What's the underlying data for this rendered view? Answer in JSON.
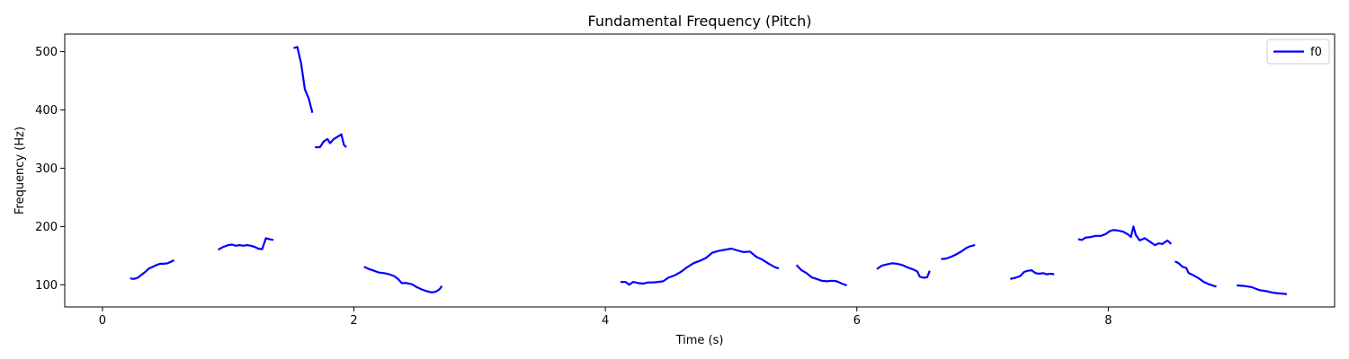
{
  "chart_data": {
    "type": "line",
    "title": "Fundamental Frequency (Pitch)",
    "xlabel": "Time (s)",
    "ylabel": "Frequency (Hz)",
    "xlim": [
      -0.3,
      9.8
    ],
    "ylim": [
      62,
      530
    ],
    "xticks": [
      0,
      2,
      4,
      6,
      8
    ],
    "yticks": [
      100,
      200,
      300,
      400,
      500
    ],
    "grid": false,
    "legend": {
      "position": "top-right",
      "entries": [
        "f0"
      ]
    },
    "series": [
      {
        "name": "f0",
        "color": "#0000ff",
        "segments": [
          [
            [
              0.22,
              111
            ],
            [
              0.25,
              110
            ],
            [
              0.28,
              112
            ],
            [
              0.31,
              117
            ],
            [
              0.34,
              122
            ],
            [
              0.37,
              128
            ],
            [
              0.4,
              131
            ],
            [
              0.43,
              134
            ],
            [
              0.46,
              136
            ],
            [
              0.49,
              136
            ],
            [
              0.52,
              137
            ],
            [
              0.55,
              140
            ],
            [
              0.57,
              142
            ]
          ],
          [
            [
              0.92,
              160
            ],
            [
              0.96,
              165
            ],
            [
              1.0,
              168
            ],
            [
              1.03,
              169
            ],
            [
              1.06,
              167
            ],
            [
              1.09,
              168
            ],
            [
              1.12,
              167
            ],
            [
              1.15,
              168
            ],
            [
              1.18,
              167
            ],
            [
              1.21,
              165
            ],
            [
              1.24,
              162
            ],
            [
              1.27,
              161
            ],
            [
              1.3,
              180
            ],
            [
              1.33,
              178
            ],
            [
              1.36,
              177
            ]
          ],
          [
            [
              1.52,
              506
            ],
            [
              1.55,
              508
            ],
            [
              1.58,
              480
            ],
            [
              1.61,
              435
            ],
            [
              1.64,
              420
            ],
            [
              1.67,
              395
            ]
          ],
          [
            [
              1.69,
              336
            ],
            [
              1.73,
              336
            ],
            [
              1.76,
              346
            ],
            [
              1.79,
              350
            ],
            [
              1.81,
              343
            ],
            [
              1.84,
              350
            ],
            [
              1.87,
              354
            ],
            [
              1.9,
              358
            ],
            [
              1.92,
              340
            ],
            [
              1.94,
              336
            ]
          ],
          [
            [
              2.08,
              131
            ],
            [
              2.12,
              127
            ],
            [
              2.16,
              124
            ],
            [
              2.2,
              121
            ],
            [
              2.24,
              120
            ],
            [
              2.28,
              118
            ],
            [
              2.32,
              115
            ],
            [
              2.35,
              110
            ],
            [
              2.38,
              103
            ],
            [
              2.42,
              103
            ],
            [
              2.46,
              101
            ],
            [
              2.5,
              96
            ],
            [
              2.54,
              92
            ],
            [
              2.58,
              89
            ],
            [
              2.62,
              87
            ],
            [
              2.65,
              88
            ],
            [
              2.68,
              92
            ],
            [
              2.7,
              98
            ]
          ],
          [
            [
              4.12,
              105
            ],
            [
              4.16,
              105
            ],
            [
              4.19,
              100
            ],
            [
              4.22,
              105
            ],
            [
              4.26,
              103
            ],
            [
              4.3,
              102
            ],
            [
              4.34,
              104
            ],
            [
              4.38,
              104
            ],
            [
              4.42,
              105
            ],
            [
              4.46,
              106
            ],
            [
              4.5,
              112
            ],
            [
              4.55,
              116
            ],
            [
              4.6,
              122
            ],
            [
              4.65,
              130
            ],
            [
              4.7,
              137
            ],
            [
              4.75,
              141
            ],
            [
              4.8,
              146
            ],
            [
              4.85,
              155
            ],
            [
              4.9,
              158
            ],
            [
              4.95,
              160
            ],
            [
              5.0,
              162
            ],
            [
              5.05,
              159
            ],
            [
              5.1,
              156
            ],
            [
              5.15,
              157
            ],
            [
              5.2,
              148
            ],
            [
              5.25,
              143
            ],
            [
              5.3,
              136
            ],
            [
              5.35,
              130
            ],
            [
              5.38,
              128
            ]
          ],
          [
            [
              5.52,
              134
            ],
            [
              5.56,
              125
            ],
            [
              5.6,
              120
            ],
            [
              5.64,
              113
            ],
            [
              5.68,
              110
            ],
            [
              5.72,
              107
            ],
            [
              5.76,
              106
            ],
            [
              5.8,
              107
            ],
            [
              5.84,
              106
            ],
            [
              5.88,
              102
            ],
            [
              5.92,
              99
            ]
          ],
          [
            [
              6.16,
              127
            ],
            [
              6.2,
              133
            ],
            [
              6.24,
              135
            ],
            [
              6.28,
              137
            ],
            [
              6.32,
              136
            ],
            [
              6.36,
              134
            ],
            [
              6.4,
              130
            ],
            [
              6.44,
              127
            ],
            [
              6.48,
              123
            ],
            [
              6.5,
              114
            ],
            [
              6.53,
              112
            ],
            [
              6.56,
              113
            ],
            [
              6.58,
              124
            ]
          ],
          [
            [
              6.67,
              144
            ],
            [
              6.71,
              145
            ],
            [
              6.75,
              148
            ],
            [
              6.79,
              152
            ],
            [
              6.83,
              157
            ],
            [
              6.87,
              163
            ],
            [
              6.9,
              166
            ],
            [
              6.94,
              168
            ]
          ],
          [
            [
              7.22,
              110
            ],
            [
              7.26,
              112
            ],
            [
              7.3,
              115
            ],
            [
              7.33,
              122
            ],
            [
              7.36,
              124
            ],
            [
              7.39,
              125
            ],
            [
              7.42,
              120
            ],
            [
              7.45,
              119
            ],
            [
              7.48,
              120
            ],
            [
              7.51,
              118
            ],
            [
              7.54,
              119
            ],
            [
              7.57,
              118
            ]
          ],
          [
            [
              7.76,
              178
            ],
            [
              7.79,
              177
            ],
            [
              7.82,
              181
            ],
            [
              7.86,
              182
            ],
            [
              7.9,
              184
            ],
            [
              7.94,
              184
            ],
            [
              7.98,
              187
            ],
            [
              8.01,
              192
            ],
            [
              8.04,
              194
            ],
            [
              8.08,
              193
            ],
            [
              8.12,
              191
            ],
            [
              8.16,
              186
            ],
            [
              8.18,
              182
            ],
            [
              8.2,
              200
            ],
            [
              8.22,
              185
            ],
            [
              8.25,
              176
            ],
            [
              8.29,
              180
            ],
            [
              8.33,
              174
            ],
            [
              8.37,
              168
            ],
            [
              8.4,
              171
            ],
            [
              8.43,
              170
            ],
            [
              8.47,
              176
            ],
            [
              8.5,
              170
            ]
          ],
          [
            [
              8.53,
              140
            ],
            [
              8.56,
              137
            ],
            [
              8.59,
              131
            ],
            [
              8.62,
              129
            ],
            [
              8.64,
              120
            ],
            [
              8.68,
              116
            ],
            [
              8.72,
              111
            ],
            [
              8.76,
              105
            ],
            [
              8.8,
              101
            ],
            [
              8.84,
              98
            ],
            [
              8.86,
              97
            ]
          ],
          [
            [
              9.02,
              99
            ],
            [
              9.08,
              98
            ],
            [
              9.14,
              96
            ],
            [
              9.2,
              91
            ],
            [
              9.26,
              89
            ],
            [
              9.32,
              86
            ],
            [
              9.38,
              85
            ],
            [
              9.42,
              84
            ]
          ]
        ]
      }
    ]
  }
}
